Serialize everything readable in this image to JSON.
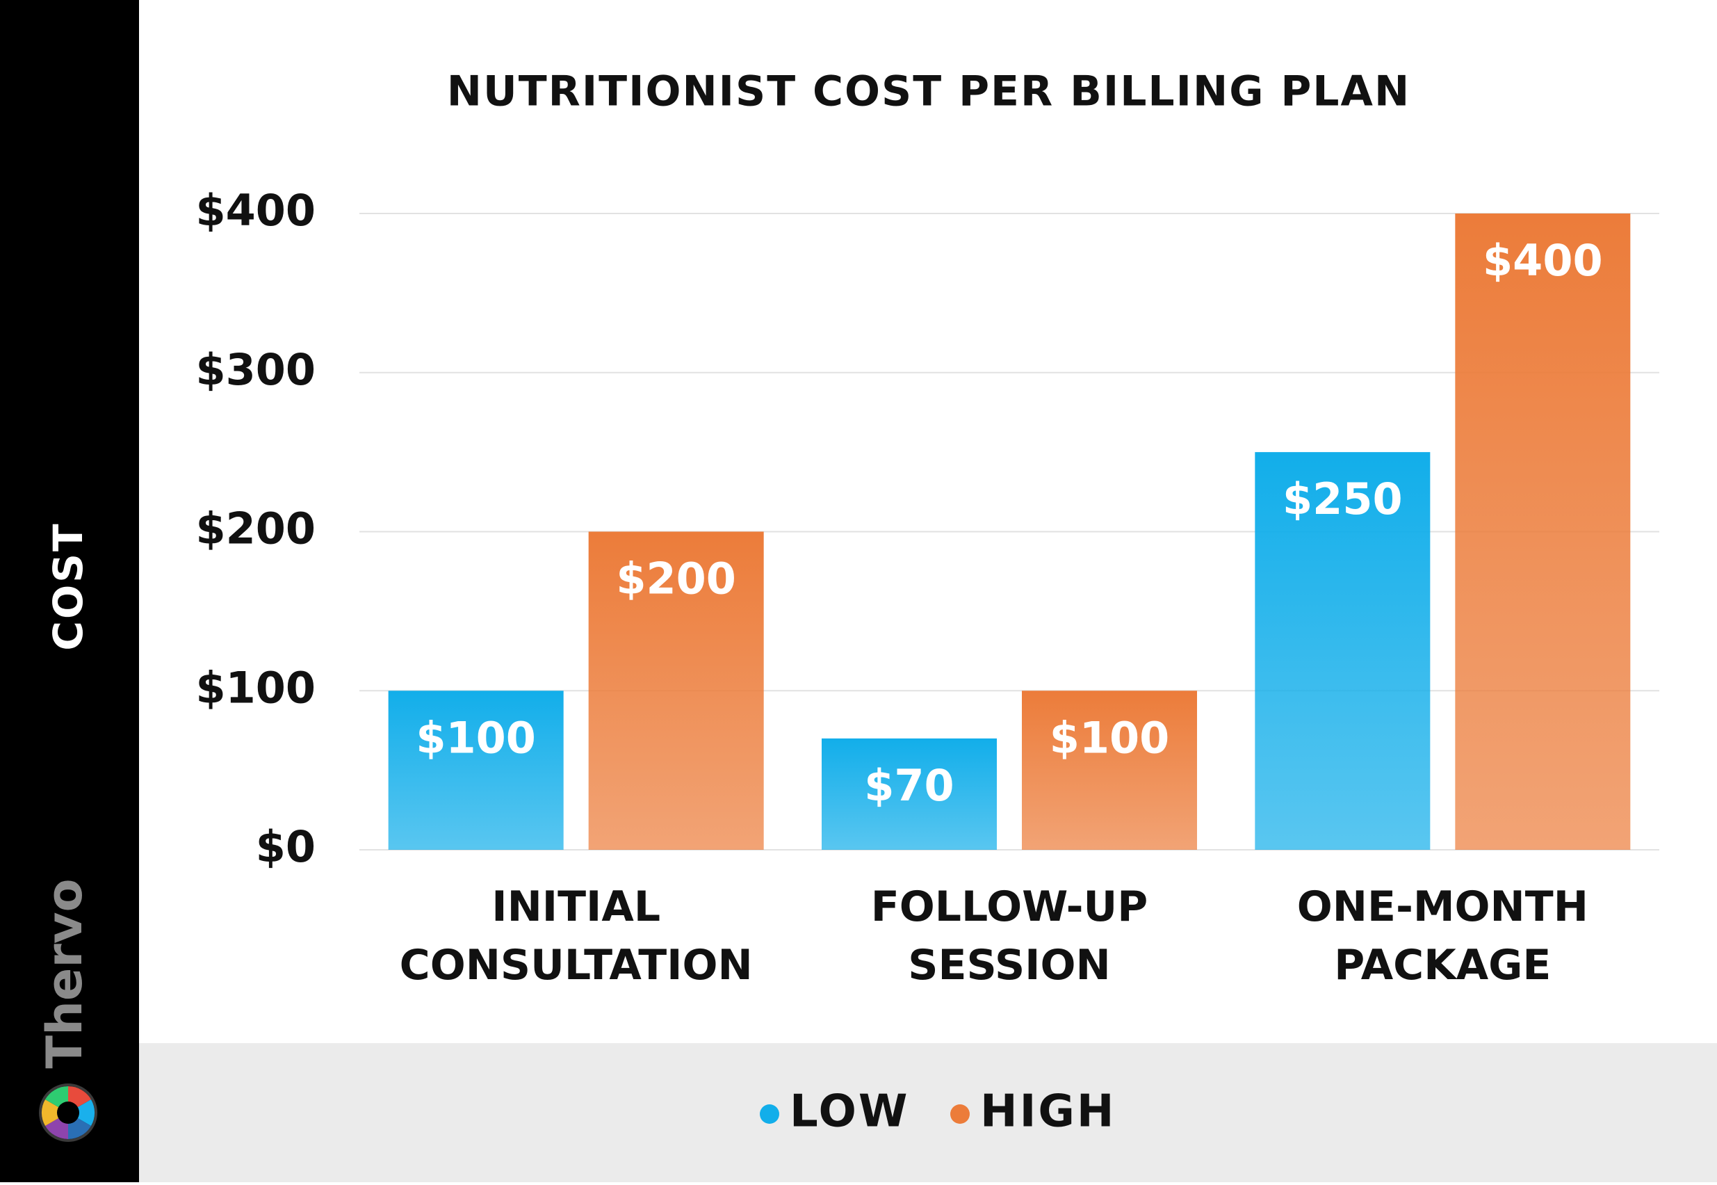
{
  "brand": "Thervo",
  "chart_data": {
    "type": "bar",
    "title": "NUTRITIONIST COST PER BILLING PLAN",
    "y_label": "COST",
    "categories": [
      "INITIAL CONSULTATION",
      "FOLLOW-UP SESSION",
      "ONE-MONTH PACKAGE"
    ],
    "series": [
      {
        "name": "LOW",
        "color": "#12aeea",
        "values": [
          100,
          70,
          250
        ],
        "value_labels": [
          "$100",
          "$70",
          "$250"
        ]
      },
      {
        "name": "HIGH",
        "color": "#ec7c3a",
        "values": [
          200,
          100,
          400
        ],
        "value_labels": [
          "$200",
          "$100",
          "$400"
        ]
      }
    ],
    "ylim": [
      0,
      400
    ],
    "yticks": [
      {
        "value": 0,
        "label": "$0"
      },
      {
        "value": 100,
        "label": "$100"
      },
      {
        "value": 200,
        "label": "$200"
      },
      {
        "value": 300,
        "label": "$300"
      },
      {
        "value": 400,
        "label": "$400"
      }
    ],
    "grid": true,
    "legend": "bottom"
  }
}
